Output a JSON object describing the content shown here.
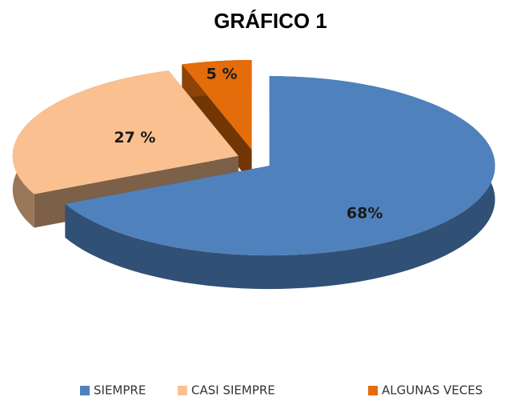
{
  "chart_data": {
    "type": "pie",
    "title": "GRÁFICO 1",
    "categories": [
      "SIEMPRE",
      "CASI SIEMPRE",
      "ALGUNAS VECES"
    ],
    "values": [
      68,
      27,
      5
    ],
    "value_labels": [
      "68%",
      "27 %",
      "5 %"
    ],
    "colors": [
      "#4f81bd",
      "#fac090",
      "#e46c0a"
    ],
    "legend": "bottom"
  }
}
